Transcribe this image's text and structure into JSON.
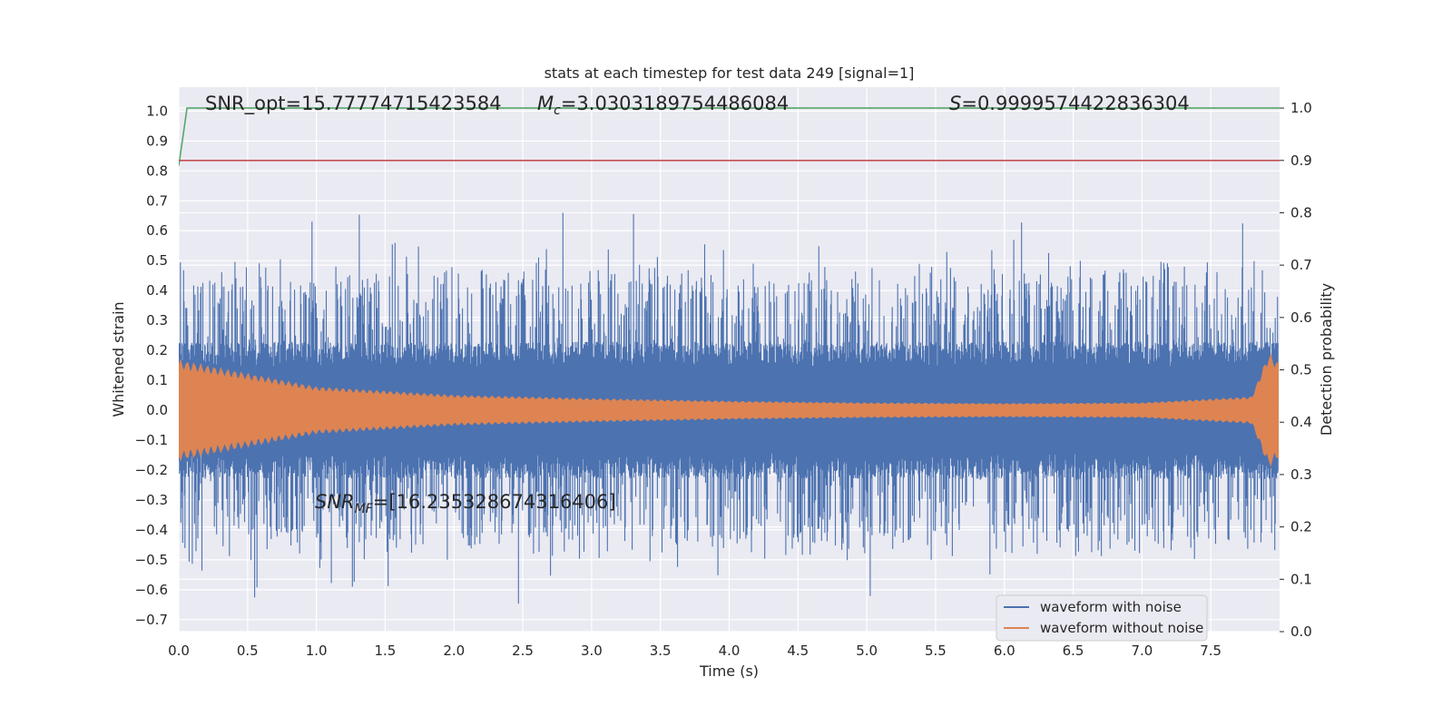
{
  "chart_data": {
    "type": "line",
    "title": "stats at each timestep for test data 249 [signal=1]",
    "xlabel": "Time (s)",
    "ylabel_left": "Whitened strain",
    "ylabel_right": "Detection probability",
    "xlim": [
      0.0,
      8.0
    ],
    "ylim_left": [
      -0.74,
      1.08
    ],
    "ylim_right": [
      -0.0,
      1.04
    ],
    "x_ticks": [
      "0.0",
      "0.5",
      "1.0",
      "1.5",
      "2.0",
      "2.5",
      "3.0",
      "3.5",
      "4.0",
      "4.5",
      "5.0",
      "5.5",
      "6.0",
      "6.5",
      "7.0",
      "7.5"
    ],
    "y_ticks_left": [
      "1.0",
      "0.9",
      "0.8",
      "0.7",
      "0.6",
      "0.5",
      "0.4",
      "0.3",
      "0.2",
      "0.1",
      "0.0",
      "−0.1",
      "−0.2",
      "−0.3",
      "−0.4",
      "−0.5",
      "−0.6",
      "−0.7"
    ],
    "y_ticks_right": [
      "1.0",
      "0.9",
      "0.8",
      "0.7",
      "0.6",
      "0.5",
      "0.4",
      "0.3",
      "0.2",
      "0.1",
      "0.0"
    ],
    "grid": true,
    "legend_position": "lower-right",
    "series": [
      {
        "name": "waveform with noise",
        "axis": "left",
        "color": "#4c72b0",
        "noise_amplitude": 0.17,
        "peak_range": [
          -0.66,
          0.66
        ]
      },
      {
        "name": "waveform without noise",
        "axis": "left",
        "color": "#dd8452",
        "envelope": {
          "x": [
            0.0,
            1.0,
            2.0,
            3.0,
            4.0,
            5.0,
            6.0,
            7.0,
            7.8,
            7.92,
            7.95,
            8.0
          ],
          "y": [
            0.15,
            0.07,
            0.045,
            0.035,
            0.027,
            0.022,
            0.02,
            0.022,
            0.04,
            0.17,
            0.16,
            0.14
          ]
        }
      },
      {
        "name": "",
        "axis": "right",
        "color": "#55a868",
        "x": [
          0.0,
          0.06,
          0.1,
          8.0
        ],
        "y": [
          0.89,
          1.0,
          1.0,
          1.0
        ]
      },
      {
        "name": "",
        "axis": "right",
        "color": "#c44e52",
        "x": [
          0.0,
          8.0
        ],
        "y": [
          0.9,
          0.9
        ]
      }
    ],
    "annotations": [
      {
        "text": "SNR_opt=15.77774715423584"
      },
      {
        "text_main": "M",
        "text_sub": "c",
        "text_rest": "=3.0303189754486084"
      },
      {
        "text_italic": "S",
        "text_rest": "=0.9999574422836304"
      },
      {
        "text_main": "SNR",
        "text_sub": "MF",
        "text_rest": "=[16.235328674316406]"
      }
    ]
  }
}
